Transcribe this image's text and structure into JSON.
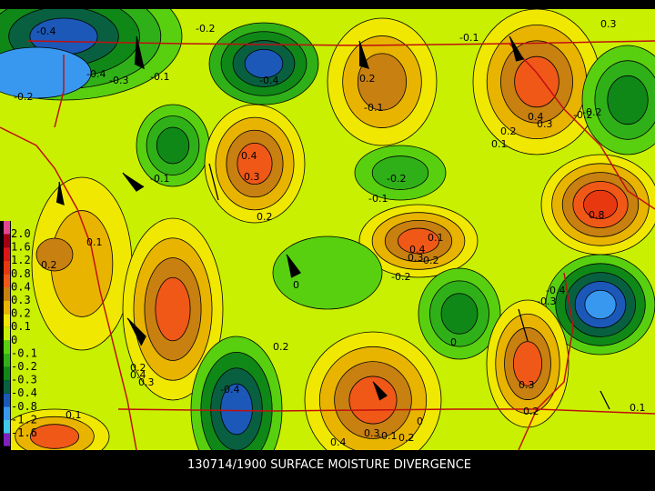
{
  "title": "130714/1900 SURFACE MOISTURE DIVERGENCE",
  "legend": {
    "levels": [
      {
        "label": "2.0",
        "color": "#e04890"
      },
      {
        "label": "1.6",
        "color": "#a00010"
      },
      {
        "label": "1.2",
        "color": "#d81818"
      },
      {
        "label": "0.8",
        "color": "#e83810"
      },
      {
        "label": "0.4",
        "color": "#f05818"
      },
      {
        "label": "0.3",
        "color": "#c88010"
      },
      {
        "label": "0.2",
        "color": "#e8b400"
      },
      {
        "label": "0.1",
        "color": "#f0e800"
      },
      {
        "label": "0",
        "color": "#c8f000"
      },
      {
        "label": "-0.1",
        "color": "#58d010"
      },
      {
        "label": "-0.2",
        "color": "#30b018"
      },
      {
        "label": "-0.3",
        "color": "#108818"
      },
      {
        "label": "-0.4",
        "color": "#086040"
      },
      {
        "label": "-0.8",
        "color": "#1c58b8"
      },
      {
        "label": "-1.2",
        "color": "#3898f0"
      },
      {
        "label": "-1.6",
        "color": "#40c8e8"
      }
    ]
  },
  "contour_labels": [
    "-0.4",
    "-0.2",
    "-0.4",
    "-0.3",
    "-0.1",
    "-0.2",
    "-0.4",
    "-0.1",
    "0.3",
    "0.2",
    "0.1",
    "-0.1",
    "0.4",
    "0.3",
    "0.2",
    "-0.2",
    "-0.2",
    "-0.1",
    "-0.2",
    "0.1",
    "0.2",
    "0.4",
    "0.3",
    "0.2",
    "-0.1",
    "0",
    "0.1",
    "0.2",
    "0.4",
    "0.3",
    "-0.2",
    "-0.4",
    "-0.3",
    "0.2",
    "-0.4",
    "0.2",
    "0.4",
    "0.3",
    "0.3",
    "0.2",
    "0.1",
    "0.8",
    "0",
    "0.1",
    "-0.1",
    "0.3",
    "0.4",
    "0.2",
    "0"
  ]
}
